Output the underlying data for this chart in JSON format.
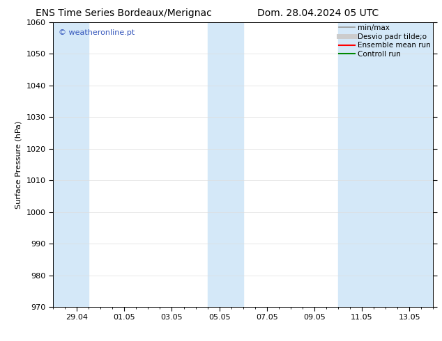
{
  "title_left": "ENS Time Series Bordeaux/Merignac",
  "title_right": "Dom. 28.04.2024 05 UTC",
  "ylabel": "Surface Pressure (hPa)",
  "ylim": [
    970,
    1060
  ],
  "yticks": [
    970,
    980,
    990,
    1000,
    1010,
    1020,
    1030,
    1040,
    1050,
    1060
  ],
  "xtick_labels": [
    "29.04",
    "01.05",
    "03.05",
    "05.05",
    "07.05",
    "09.05",
    "11.05",
    "13.05"
  ],
  "xtick_positions": [
    1,
    3,
    5,
    7,
    9,
    11,
    13,
    15
  ],
  "xlim": [
    0,
    16
  ],
  "shaded_bands": [
    {
      "xstart": 0.0,
      "xend": 1.5
    },
    {
      "xstart": 6.5,
      "xend": 8.0
    },
    {
      "xstart": 12.0,
      "xend": 16.0
    }
  ],
  "shade_color": "#d4e8f8",
  "background_color": "#ffffff",
  "plot_bg_color": "#ffffff",
  "watermark_text": "© weatheronline.pt",
  "watermark_color": "#3355bb",
  "legend_entries": [
    {
      "label": "min/max",
      "color": "#999999",
      "lw": 1.2
    },
    {
      "label": "Desvio padr tilde;o",
      "color": "#cccccc",
      "lw": 5
    },
    {
      "label": "Ensemble mean run",
      "color": "#ff0000",
      "lw": 1.5
    },
    {
      "label": "Controll run",
      "color": "#008800",
      "lw": 1.5
    }
  ],
  "grid_color": "#dddddd",
  "title_fontsize": 10,
  "axis_label_fontsize": 8,
  "tick_fontsize": 8,
  "legend_fontsize": 7.5,
  "watermark_fontsize": 8
}
